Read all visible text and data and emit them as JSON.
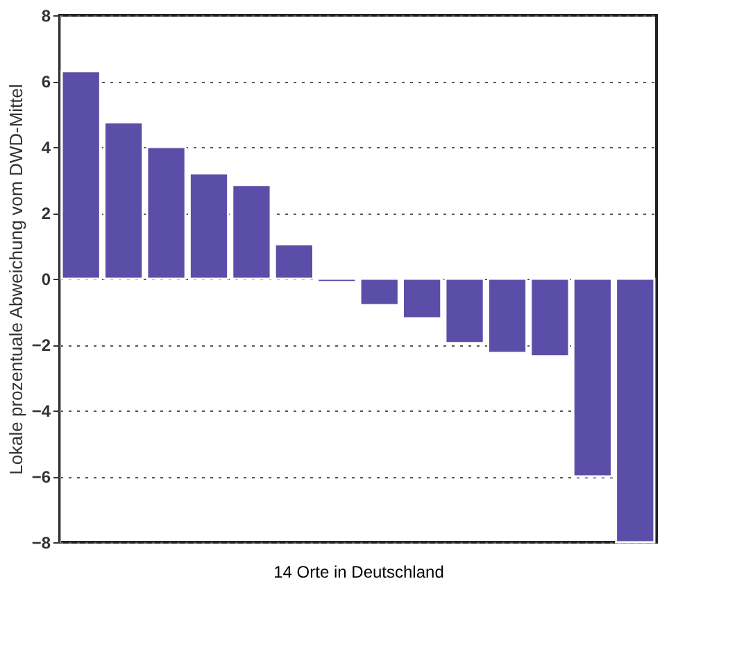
{
  "chart_data": {
    "type": "bar",
    "xlabel": "14 Orte in Deutschland",
    "ylabel": "Lokale prozentuale Abweichung vom DWD-Mittel",
    "categories": [
      null,
      null,
      null,
      null,
      null,
      null,
      null,
      null,
      null,
      null,
      null,
      null,
      null,
      null
    ],
    "values": [
      6.3,
      4.75,
      4.0,
      3.2,
      2.85,
      1.05,
      -0.1,
      -0.8,
      -1.2,
      -1.95,
      -2.25,
      -2.35,
      -6.0,
      -8.0
    ],
    "color": "#5b4ea8",
    "ylim": [
      -8,
      8
    ],
    "yticks": [
      -8,
      -6,
      -4,
      -2,
      0,
      2,
      4,
      6,
      8
    ],
    "grid": "y"
  }
}
